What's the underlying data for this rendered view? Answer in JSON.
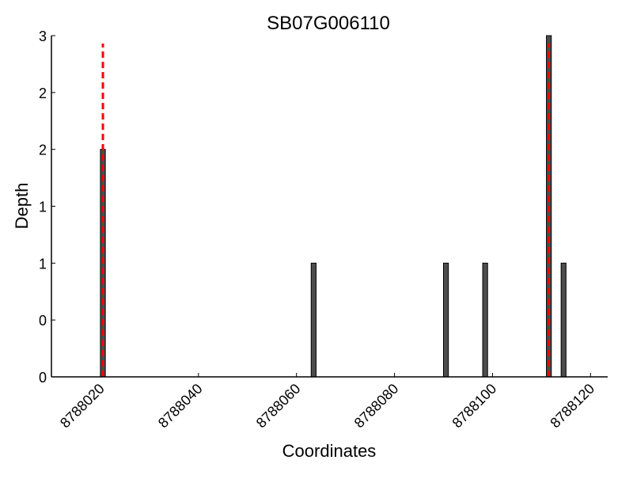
{
  "chart_data": {
    "type": "bar",
    "title": "SB07G006110",
    "xlabel": "Coordinates",
    "ylabel": "Depth",
    "xlim": [
      8788010,
      8788123.5
    ],
    "ylim": [
      0,
      3
    ],
    "x_ticks": [
      8788020,
      8788040,
      8788060,
      8788080,
      8788100,
      8788120
    ],
    "x_tick_labels": [
      "8788020",
      "8788040",
      "8788060",
      "8788080",
      "8788100",
      "8788120"
    ],
    "y_ticks": [
      0,
      0.5,
      1,
      1.5,
      2,
      2.5,
      3
    ],
    "y_tick_labels": [
      "0",
      "0",
      "1",
      "1",
      "2",
      "2",
      "3"
    ],
    "bars": [
      {
        "x": 8788020,
        "depth": 2
      },
      {
        "x": 8788063,
        "depth": 1
      },
      {
        "x": 8788090,
        "depth": 1
      },
      {
        "x": 8788098,
        "depth": 1
      },
      {
        "x": 8788111,
        "depth": 3
      },
      {
        "x": 8788114,
        "depth": 1
      }
    ],
    "markers": [
      8788020,
      8788111
    ],
    "marker_style": "dashed",
    "colors": {
      "bar": "#4d4d4d",
      "marker": "#ff0000"
    },
    "grid": false
  }
}
